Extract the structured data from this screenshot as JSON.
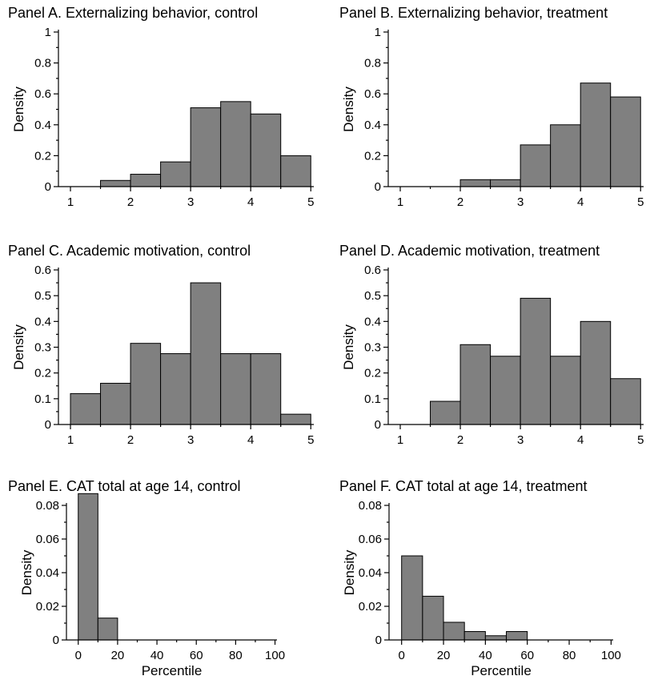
{
  "chart_data": [
    {
      "id": "A",
      "type": "bar",
      "title": "Panel A. Externalizing behavior, control",
      "ylabel": "Density",
      "xlabel": "",
      "xlim": [
        0.8,
        5.05
      ],
      "ylim": [
        0,
        1
      ],
      "xticks": [
        "1",
        "2",
        "3",
        "4",
        "5"
      ],
      "yticks": [
        "0",
        "0.2",
        "0.4",
        "0.6",
        "0.8",
        "1"
      ],
      "bins": [
        [
          1,
          1.5
        ],
        [
          1.5,
          2
        ],
        [
          2,
          2.5
        ],
        [
          2.5,
          3
        ],
        [
          3,
          3.5
        ],
        [
          3.5,
          4
        ],
        [
          4,
          4.5
        ],
        [
          4.5,
          5
        ]
      ],
      "values": [
        0,
        0.04,
        0.08,
        0.16,
        0.51,
        0.55,
        0.47,
        0.2
      ]
    },
    {
      "id": "B",
      "type": "bar",
      "title": "Panel B. Externalizing behavior, treatment",
      "ylabel": "Density",
      "xlabel": "",
      "xlim": [
        0.8,
        5.05
      ],
      "ylim": [
        0,
        1
      ],
      "xticks": [
        "1",
        "2",
        "3",
        "4",
        "5"
      ],
      "yticks": [
        "0",
        "0.2",
        "0.4",
        "0.6",
        "0.8",
        "1"
      ],
      "bins": [
        [
          1,
          1.5
        ],
        [
          1.5,
          2
        ],
        [
          2,
          2.5
        ],
        [
          2.5,
          3
        ],
        [
          3,
          3.5
        ],
        [
          3.5,
          4
        ],
        [
          4,
          4.5
        ],
        [
          4.5,
          5
        ]
      ],
      "values": [
        0,
        0,
        0.045,
        0.045,
        0.27,
        0.4,
        0.67,
        0.58
      ]
    },
    {
      "id": "C",
      "type": "bar",
      "title": "Panel C. Academic motivation, control",
      "ylabel": "Density",
      "xlabel": "",
      "xlim": [
        0.8,
        5.05
      ],
      "ylim": [
        0,
        0.6
      ],
      "xticks": [
        "1",
        "2",
        "3",
        "4",
        "5"
      ],
      "yticks": [
        "0",
        "0.1",
        "0.2",
        "0.3",
        "0.4",
        "0.5",
        "0.6"
      ],
      "bins": [
        [
          1,
          1.5
        ],
        [
          1.5,
          2
        ],
        [
          2,
          2.5
        ],
        [
          2.5,
          3
        ],
        [
          3,
          3.5
        ],
        [
          3.5,
          4
        ],
        [
          4,
          4.5
        ],
        [
          4.5,
          5
        ]
      ],
      "values": [
        0.12,
        0.16,
        0.315,
        0.275,
        0.55,
        0.275,
        0.275,
        0.04
      ]
    },
    {
      "id": "D",
      "type": "bar",
      "title": "Panel D. Academic motivation, treatment",
      "ylabel": "Density",
      "xlabel": "",
      "xlim": [
        0.8,
        5.05
      ],
      "ylim": [
        0,
        0.6
      ],
      "xticks": [
        "1",
        "2",
        "3",
        "4",
        "5"
      ],
      "yticks": [
        "0",
        "0.1",
        "0.2",
        "0.3",
        "0.4",
        "0.5",
        "0.6"
      ],
      "bins": [
        [
          1,
          1.5
        ],
        [
          1.5,
          2
        ],
        [
          2,
          2.5
        ],
        [
          2.5,
          3
        ],
        [
          3,
          3.5
        ],
        [
          3.5,
          4
        ],
        [
          4,
          4.5
        ],
        [
          4.5,
          5
        ]
      ],
      "values": [
        0,
        0.09,
        0.31,
        0.265,
        0.49,
        0.265,
        0.4,
        0.178
      ]
    },
    {
      "id": "E",
      "type": "bar",
      "title": "Panel E. CAT total at age 14, control",
      "ylabel": "Density",
      "xlabel": "Percentile",
      "xlim": [
        -6,
        101
      ],
      "ylim": [
        0,
        0.08
      ],
      "xticks": [
        "0",
        "20",
        "40",
        "60",
        "80",
        "100"
      ],
      "yticks": [
        "0",
        "0.02",
        "0.04",
        "0.06",
        "0.08"
      ],
      "bins": [
        [
          0,
          10
        ],
        [
          10,
          20
        ],
        [
          20,
          30
        ],
        [
          30,
          40
        ],
        [
          40,
          50
        ],
        [
          50,
          60
        ],
        [
          60,
          70
        ],
        [
          70,
          80
        ],
        [
          80,
          90
        ],
        [
          90,
          100
        ]
      ],
      "values": [
        0.087,
        0.013,
        0,
        0,
        0,
        0,
        0,
        0,
        0,
        0
      ]
    },
    {
      "id": "F",
      "type": "bar",
      "title": "Panel F. CAT total at age 14, treatment",
      "ylabel": "Density",
      "xlabel": "Percentile",
      "xlim": [
        -6,
        101
      ],
      "ylim": [
        0,
        0.08
      ],
      "xticks": [
        "0",
        "20",
        "40",
        "60",
        "80",
        "100"
      ],
      "yticks": [
        "0",
        "0.02",
        "0.04",
        "0.06",
        "0.08"
      ],
      "bins": [
        [
          0,
          10
        ],
        [
          10,
          20
        ],
        [
          20,
          30
        ],
        [
          30,
          40
        ],
        [
          40,
          50
        ],
        [
          50,
          60
        ],
        [
          60,
          70
        ],
        [
          70,
          80
        ],
        [
          80,
          90
        ],
        [
          90,
          100
        ]
      ],
      "values": [
        0.05,
        0.026,
        0.0105,
        0.005,
        0.0025,
        0.005,
        0,
        0,
        0,
        0
      ]
    }
  ],
  "colors": {
    "bar_fill": "#808080",
    "bar_stroke": "#000000",
    "axis": "#000000",
    "background": "#ffffff"
  }
}
